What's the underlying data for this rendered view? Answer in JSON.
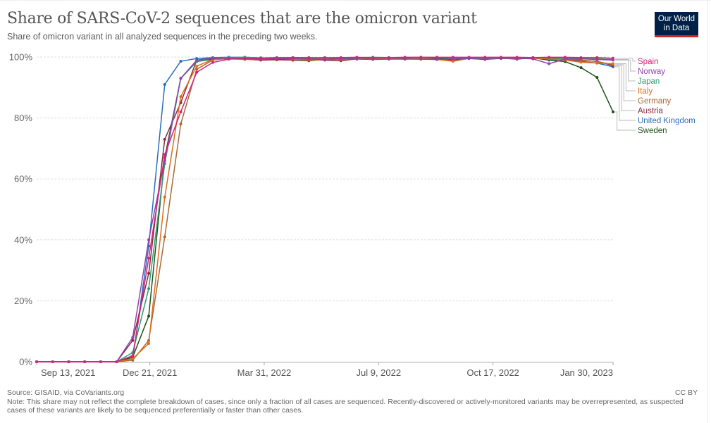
{
  "header": {
    "title": "Share of SARS-CoV-2 sequences that are the omicron variant",
    "subtitle": "Share of omicron variant in all analyzed sequences in the preceding two weeks.",
    "logo_line1": "Our World",
    "logo_line2": "in Data"
  },
  "footer": {
    "source": "Source: GISAID, via CoVariants.org",
    "note": "Note: This share may not reflect the complete breakdown of cases, since only a fraction of all cases are sequenced. Recently-discovered or actively-monitored variants may be overrepresented, as suspected cases of these variants are likely to be sequenced preferentially or faster than other cases.",
    "license": "CC BY"
  },
  "chart_data": {
    "type": "line",
    "title": "Share of SARS-CoV-2 sequences that are the omicron variant",
    "subtitle": "Share of omicron variant in all analyzed sequences in the preceding two weeks.",
    "xlabel": "",
    "ylabel": "",
    "x_start": "2021-09-13",
    "x_end": "2023-01-30",
    "x_interval_days": 14,
    "x_tick_labels": [
      "Sep 13, 2021",
      "Dec 21, 2021",
      "Mar 31, 2022",
      "Jul 9, 2022",
      "Oct 17, 2022",
      "Jan 30, 2023"
    ],
    "x_tick_days": [
      0,
      99,
      199,
      299,
      399,
      504
    ],
    "y_ticks": [
      0,
      20,
      40,
      60,
      80,
      100
    ],
    "y_tick_labels": [
      "0%",
      "20%",
      "40%",
      "60%",
      "80%",
      "100%"
    ],
    "ylim": [
      0,
      100
    ],
    "grid": "horizontal-dashed",
    "legend": "right-end-labels",
    "series": [
      {
        "name": "Spain",
        "color": "#d4237a",
        "values": [
          0,
          0,
          0,
          0,
          0,
          0,
          2,
          34,
          68,
          82,
          95,
          98.2,
          99.3,
          99.5,
          99.6,
          99.7,
          99.8,
          99.8,
          99.7,
          99.8,
          99.9,
          99.8,
          99.8,
          99.9,
          99.9,
          99.9,
          99.9,
          99.9,
          99.9,
          99.9,
          99.9,
          99.8,
          99.9,
          99.9,
          99.8,
          99.8,
          99.6
        ]
      },
      {
        "name": "Norway",
        "color": "#8e44ad",
        "values": [
          0,
          0,
          0,
          0,
          0,
          0,
          8,
          40,
          66,
          93,
          99,
          99.5,
          99.6,
          99.4,
          99.2,
          99.4,
          99.5,
          99.3,
          99.2,
          99.4,
          99.3,
          99.2,
          99.3,
          99.3,
          99.3,
          99.2,
          99.4,
          99.5,
          99.3,
          99.5,
          99.6,
          99.4,
          97.8,
          99.3,
          99.4,
          99.2,
          99.0
        ]
      },
      {
        "name": "Japan",
        "color": "#2a9d72",
        "values": [
          0,
          0,
          0,
          0,
          0,
          0,
          3,
          24,
          65,
          93,
          98.5,
          99.6,
          99.8,
          99.9,
          99.7,
          99.8,
          99.8,
          99.7,
          99.7,
          99.8,
          99.8,
          99.9,
          99.8,
          99.8,
          99.9,
          99.8,
          99.8,
          99.8,
          99.8,
          99.8,
          99.8,
          99.8,
          99.7,
          99.6,
          99.5,
          99.4,
          99.2
        ]
      },
      {
        "name": "Italy",
        "color": "#e06c1b",
        "values": [
          0,
          0,
          0,
          0,
          0,
          0,
          1,
          6,
          54,
          87,
          97,
          99.2,
          99.4,
          99.2,
          99.3,
          99.5,
          99.3,
          99.0,
          99.3,
          99.2,
          99.4,
          99.3,
          99.5,
          99.3,
          99.6,
          99.2,
          98.6,
          99.5,
          99.4,
          99.5,
          99.5,
          99.6,
          99.4,
          99.0,
          98.3,
          98.0,
          97.8
        ]
      },
      {
        "name": "Germany",
        "color": "#a86a35",
        "values": [
          0,
          0,
          0,
          0,
          0,
          0,
          0.5,
          7,
          41,
          78,
          96,
          99,
          99.6,
          99.7,
          99.7,
          99.6,
          99.7,
          99.6,
          99.6,
          99.7,
          99.8,
          99.7,
          99.7,
          99.8,
          99.8,
          99.8,
          99.7,
          99.7,
          99.8,
          99.8,
          99.8,
          99.8,
          99.5,
          99.2,
          99.0,
          98.5,
          97.5
        ]
      },
      {
        "name": "Austria",
        "color": "#8a2a3f",
        "values": [
          0,
          0,
          0,
          0,
          0,
          0,
          7,
          29,
          73,
          85,
          99,
          99.6,
          99.5,
          99.3,
          99.0,
          99.1,
          99.0,
          99.2,
          99.0,
          98.8,
          99.4,
          99.3,
          99.4,
          99.4,
          99.3,
          99.2,
          99.0,
          99.5,
          99.2,
          99.6,
          99.3,
          99.7,
          99.4,
          99.0,
          98.9,
          98.6,
          97.2
        ]
      },
      {
        "name": "United Kingdom",
        "color": "#2a6ebb",
        "values": [
          0,
          0,
          0,
          0,
          0,
          0,
          1,
          38,
          91,
          98.6,
          99.5,
          99.8,
          99.9,
          99.9,
          99.7,
          99.8,
          99.6,
          99.7,
          99.8,
          99.7,
          99.8,
          99.7,
          99.7,
          99.8,
          99.8,
          99.8,
          99.8,
          99.7,
          99.7,
          99.8,
          99.8,
          99.8,
          99.3,
          99.0,
          98.6,
          98.0,
          96.8
        ]
      },
      {
        "name": "Sweden",
        "color": "#1d5218",
        "values": [
          0,
          0,
          0,
          0,
          0,
          0,
          1.5,
          15,
          67,
          93,
          98.5,
          99.3,
          99.4,
          99.5,
          99.3,
          99.4,
          99.0,
          98.8,
          99.3,
          99.4,
          99.5,
          99.5,
          99.4,
          99.5,
          99.5,
          99.6,
          99.6,
          99.6,
          99.5,
          99.6,
          99.6,
          99.7,
          99.0,
          98.5,
          96.5,
          93.3,
          82
        ]
      }
    ]
  }
}
